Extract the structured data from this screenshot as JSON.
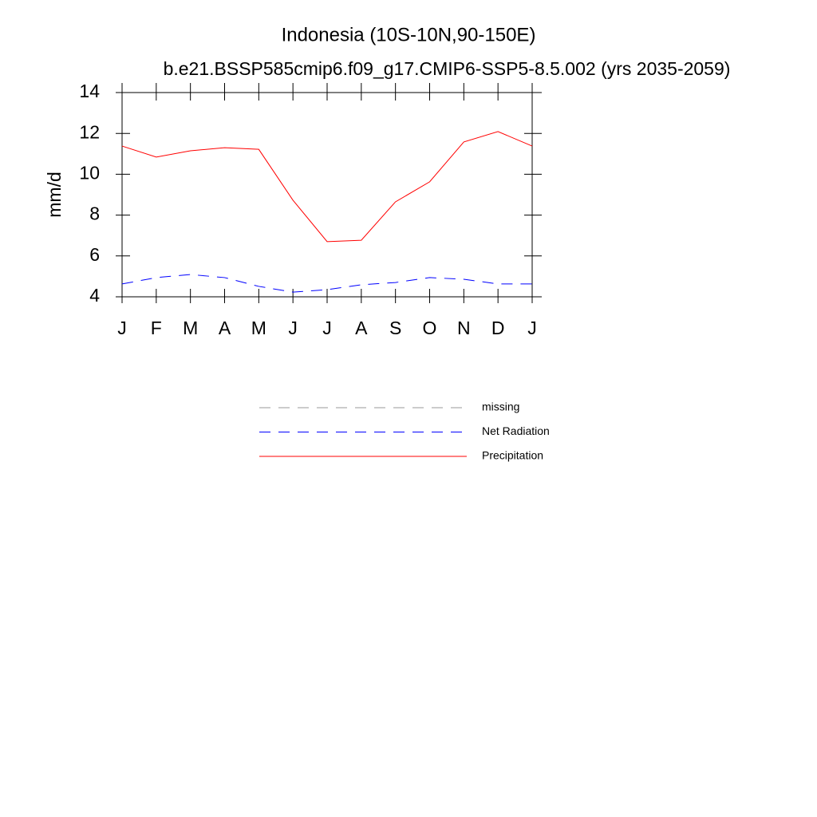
{
  "chart_data": {
    "type": "line",
    "title": "Indonesia (10S-10N,90-150E)",
    "subtitle": "b.e21.BSSP585cmip6.f09_g17.CMIP6-SSP5-8.5.002 (yrs 2035-2059)",
    "y_label": "mm/d",
    "categories": [
      "J",
      "F",
      "M",
      "A",
      "M",
      "J",
      "J",
      "A",
      "S",
      "O",
      "N",
      "D",
      "J"
    ],
    "series": [
      {
        "name": "missing",
        "color": "#999999",
        "style": "dashed",
        "values": [
          null,
          null,
          null,
          null,
          null,
          null,
          null,
          null,
          null,
          null,
          null,
          null,
          null
        ]
      },
      {
        "name": "Net Radiation",
        "color": "#0000ff",
        "style": "dashed",
        "values": [
          4.63,
          4.94,
          5.09,
          4.94,
          4.51,
          4.23,
          4.35,
          4.59,
          4.7,
          4.94,
          4.86,
          4.63,
          4.63
        ]
      },
      {
        "name": "Precipitation",
        "color": "#ff0000",
        "style": "solid",
        "values": [
          11.38,
          10.84,
          11.15,
          11.3,
          11.22,
          8.73,
          6.7,
          6.77,
          8.65,
          9.63,
          11.58,
          12.09,
          11.38
        ]
      }
    ],
    "ylim": [
      4,
      14
    ],
    "yticks": [
      4,
      6,
      8,
      10,
      12,
      14
    ],
    "grid": false
  }
}
